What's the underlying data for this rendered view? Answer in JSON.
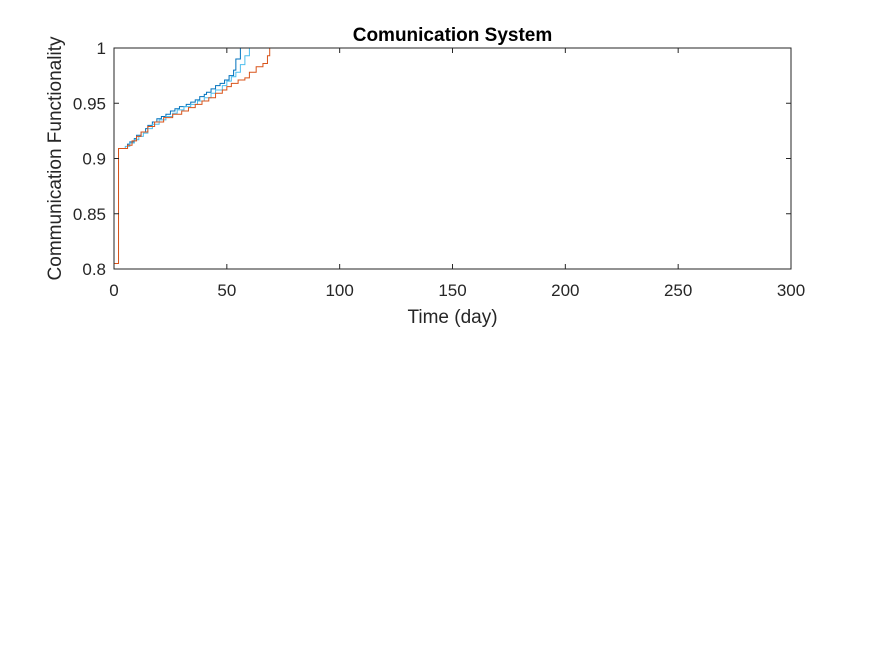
{
  "chart_data": {
    "type": "line",
    "title": "Comunication System",
    "xlabel": "Time (day)",
    "ylabel": "Communication Functionality",
    "xlim": [
      0,
      300
    ],
    "ylim": [
      0.8,
      1
    ],
    "xticks": [
      "0",
      "50",
      "100",
      "150",
      "200",
      "250",
      "300"
    ],
    "yticks": [
      "0.8",
      "0.85",
      "0.9",
      "0.95",
      "1"
    ],
    "grid": false,
    "series": [
      {
        "color": "#0072BD",
        "step": true,
        "x": [
          0,
          2,
          3,
          6,
          7,
          9,
          10,
          12,
          14,
          15,
          17,
          19,
          21,
          23,
          25,
          27,
          29,
          32,
          34,
          36,
          38,
          40,
          41,
          43,
          45,
          47,
          49,
          51,
          53,
          54,
          56,
          300
        ],
        "y": [
          0.805,
          0.909,
          0.909,
          0.913,
          0.915,
          0.918,
          0.921,
          0.924,
          0.927,
          0.93,
          0.933,
          0.936,
          0.938,
          0.94,
          0.943,
          0.945,
          0.947,
          0.949,
          0.951,
          0.953,
          0.956,
          0.958,
          0.96,
          0.963,
          0.966,
          0.968,
          0.971,
          0.975,
          0.98,
          0.99,
          1.0,
          1.0
        ]
      },
      {
        "color": "#4DBEEE",
        "step": true,
        "x": [
          0,
          2,
          3,
          5,
          7,
          9,
          11,
          13,
          15,
          17,
          20,
          23,
          26,
          28,
          31,
          34,
          37,
          40,
          43,
          45,
          48,
          50,
          52,
          54,
          56,
          58,
          60,
          300
        ],
        "y": [
          0.805,
          0.909,
          0.909,
          0.911,
          0.914,
          0.917,
          0.92,
          0.923,
          0.927,
          0.931,
          0.935,
          0.938,
          0.941,
          0.944,
          0.947,
          0.949,
          0.952,
          0.955,
          0.959,
          0.962,
          0.966,
          0.97,
          0.974,
          0.978,
          0.985,
          0.993,
          1.0,
          1.0
        ]
      },
      {
        "color": "#D95319",
        "step": true,
        "x": [
          0,
          2,
          3,
          6,
          8,
          10,
          12,
          15,
          18,
          22,
          26,
          30,
          33,
          36,
          39,
          42,
          45,
          48,
          50,
          52,
          55,
          58,
          60,
          63,
          66,
          68,
          69,
          300
        ],
        "y": [
          0.805,
          0.909,
          0.909,
          0.912,
          0.916,
          0.92,
          0.924,
          0.929,
          0.933,
          0.937,
          0.94,
          0.943,
          0.946,
          0.949,
          0.952,
          0.955,
          0.959,
          0.962,
          0.965,
          0.968,
          0.971,
          0.973,
          0.978,
          0.983,
          0.986,
          0.993,
          1.0,
          1.0
        ]
      }
    ]
  }
}
